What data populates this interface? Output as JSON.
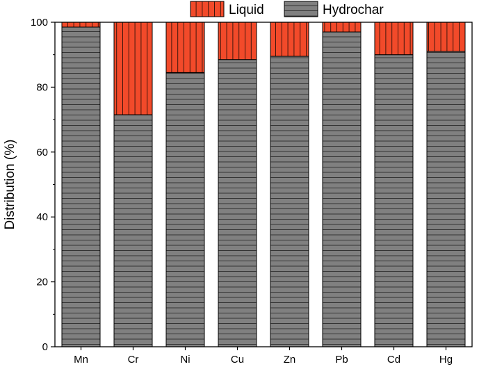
{
  "chart_data": {
    "type": "bar",
    "stacked": true,
    "categories": [
      "Mn",
      "Cr",
      "Ni",
      "Cu",
      "Zn",
      "Pb",
      "Cd",
      "Hg"
    ],
    "series": [
      {
        "name": "Hydrochar",
        "color": "#808080",
        "pattern": "horizontal-lines",
        "values": [
          98.5,
          71.5,
          84.5,
          88.5,
          89.5,
          97.0,
          90.0,
          91.0
        ]
      },
      {
        "name": "Liquid",
        "color": "#f24a2a",
        "pattern": "vertical-lines",
        "values": [
          1.5,
          28.5,
          15.5,
          11.5,
          10.5,
          3.0,
          10.0,
          9.0
        ]
      }
    ],
    "ylabel": "Distribution (%)",
    "xlabel": "",
    "ylim": [
      0,
      100
    ],
    "yticks": [
      0,
      20,
      40,
      60,
      80,
      100
    ],
    "legend": {
      "placement": "top",
      "order": [
        "Liquid",
        "Hydrochar"
      ]
    },
    "grid": false
  }
}
